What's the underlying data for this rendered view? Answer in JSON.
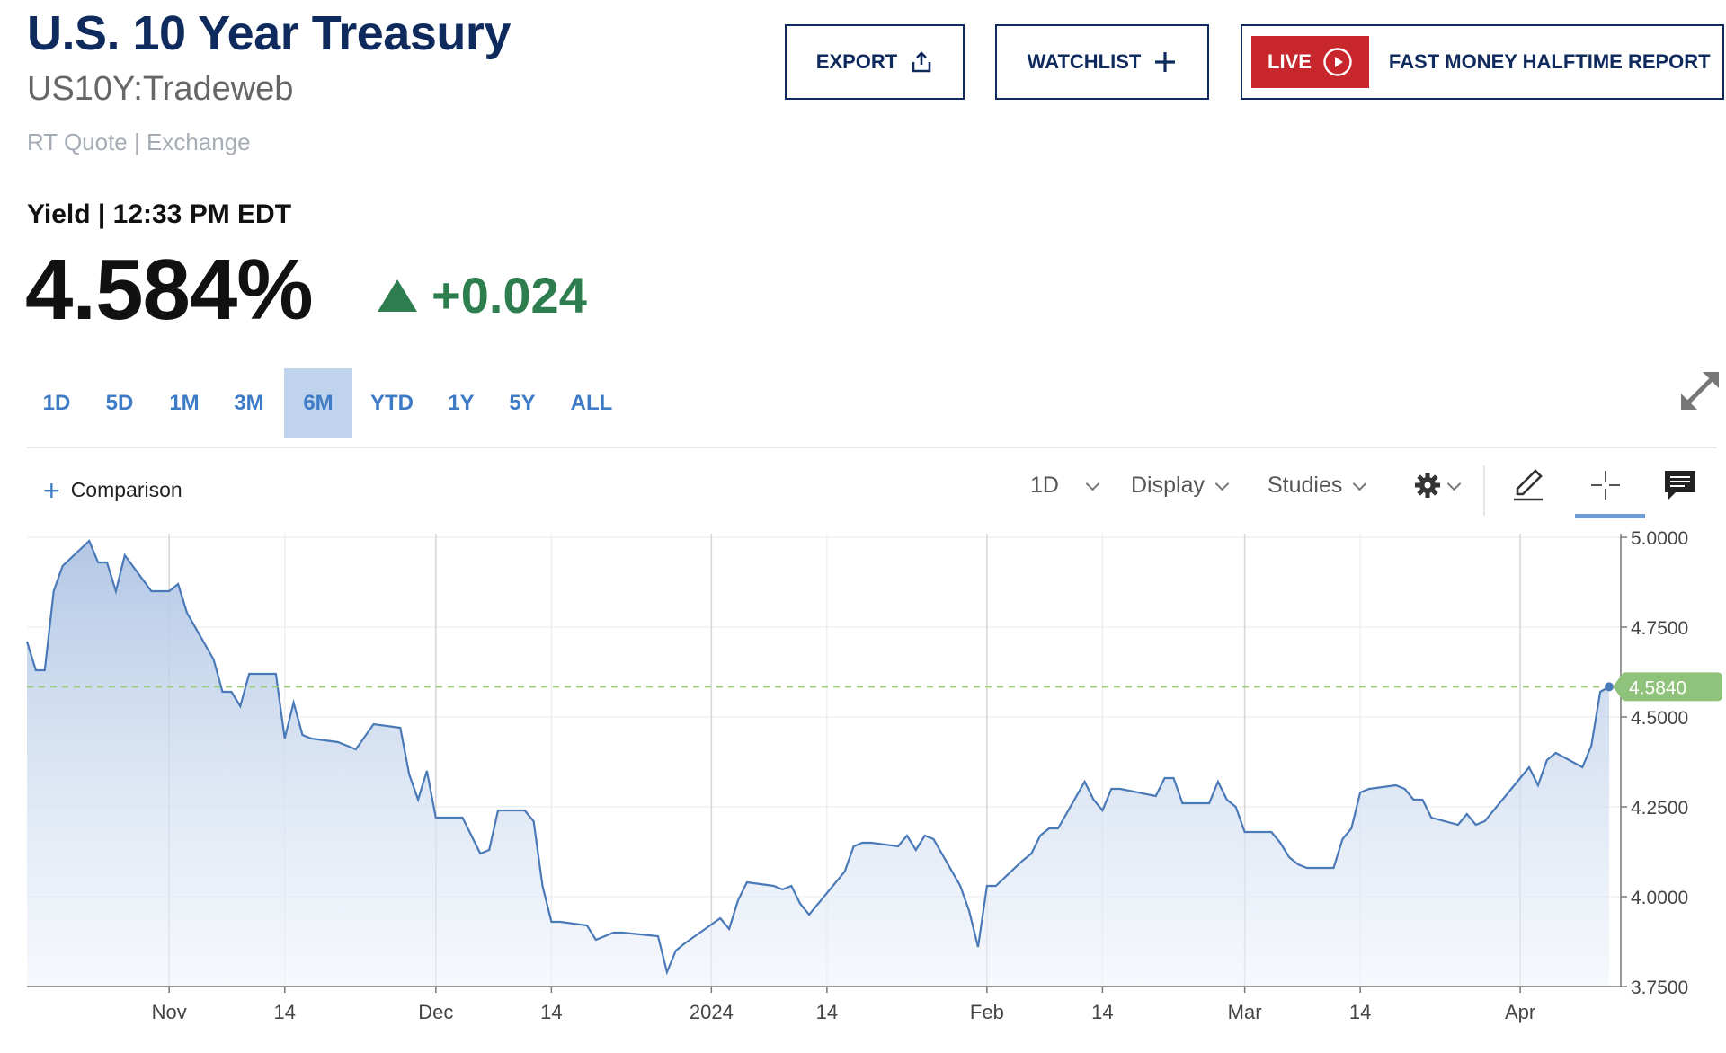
{
  "header": {
    "title": "U.S. 10 Year Treasury",
    "symbol": "US10Y:Tradeweb",
    "quote_source": "RT Quote | Exchange"
  },
  "quote": {
    "yield_label": "Yield | 12:33 PM EDT",
    "price": "4.584%",
    "change": "+0.024",
    "change_direction": "up",
    "change_color": "#2e7d4f"
  },
  "actions": {
    "export_label": "EXPORT",
    "watchlist_label": "WATCHLIST",
    "live_label": "LIVE",
    "live_show": "FAST MONEY HALFTIME REPORT",
    "live_color": "#c8262d"
  },
  "ranges": {
    "items": [
      "1D",
      "5D",
      "1M",
      "3M",
      "6M",
      "YTD",
      "1Y",
      "5Y",
      "ALL"
    ],
    "active": "6M"
  },
  "toolbar": {
    "comparison_label": "Comparison",
    "interval_label": "1D",
    "display_label": "Display",
    "studies_label": "Studies",
    "icons": [
      "gear-icon",
      "pencil-icon",
      "crosshair-icon",
      "comment-icon",
      "expand-icon"
    ]
  },
  "chart_data": {
    "type": "area",
    "title": "",
    "ylim": [
      3.75,
      5.0
    ],
    "yticks": [
      "5.0000",
      "4.7500",
      "4.5000",
      "4.2500",
      "4.0000",
      "3.7500"
    ],
    "xticks": [
      "Nov",
      "14",
      "Dec",
      "14",
      "2024",
      "14",
      "Feb",
      "14",
      "Mar",
      "14",
      "Apr"
    ],
    "last_value_label": "4.5840",
    "last_value": 4.584,
    "reference_line": 4.584,
    "grid": true,
    "line_color": "#4a79b8",
    "x_dates": [
      "2023-10-16",
      "2023-10-17",
      "2023-10-18",
      "2023-10-19",
      "2023-10-20",
      "2023-10-23",
      "2023-10-24",
      "2023-10-25",
      "2023-10-26",
      "2023-10-27",
      "2023-10-30",
      "2023-10-31",
      "2023-11-01",
      "2023-11-02",
      "2023-11-03",
      "2023-11-06",
      "2023-11-07",
      "2023-11-08",
      "2023-11-09",
      "2023-11-10",
      "2023-11-13",
      "2023-11-14",
      "2023-11-15",
      "2023-11-16",
      "2023-11-17",
      "2023-11-20",
      "2023-11-21",
      "2023-11-22",
      "2023-11-24",
      "2023-11-27",
      "2023-11-28",
      "2023-11-29",
      "2023-11-30",
      "2023-12-01",
      "2023-12-04",
      "2023-12-05",
      "2023-12-06",
      "2023-12-07",
      "2023-12-08",
      "2023-12-11",
      "2023-12-12",
      "2023-12-13",
      "2023-12-14",
      "2023-12-15",
      "2023-12-18",
      "2023-12-19",
      "2023-12-20",
      "2023-12-21",
      "2023-12-22",
      "2023-12-26",
      "2023-12-27",
      "2023-12-28",
      "2023-12-29",
      "2024-01-02",
      "2024-01-03",
      "2024-01-04",
      "2024-01-05",
      "2024-01-08",
      "2024-01-09",
      "2024-01-10",
      "2024-01-11",
      "2024-01-12",
      "2024-01-16",
      "2024-01-17",
      "2024-01-18",
      "2024-01-19",
      "2024-01-22",
      "2024-01-23",
      "2024-01-24",
      "2024-01-25",
      "2024-01-26",
      "2024-01-29",
      "2024-01-30",
      "2024-01-31",
      "2024-02-01",
      "2024-02-02",
      "2024-02-05",
      "2024-02-06",
      "2024-02-07",
      "2024-02-08",
      "2024-02-09",
      "2024-02-12",
      "2024-02-13",
      "2024-02-14",
      "2024-02-15",
      "2024-02-16",
      "2024-02-20",
      "2024-02-21",
      "2024-02-22",
      "2024-02-23",
      "2024-02-26",
      "2024-02-27",
      "2024-02-28",
      "2024-02-29",
      "2024-03-01",
      "2024-03-04",
      "2024-03-05",
      "2024-03-06",
      "2024-03-07",
      "2024-03-08",
      "2024-03-11",
      "2024-03-12",
      "2024-03-13",
      "2024-03-14",
      "2024-03-15",
      "2024-03-18",
      "2024-03-19",
      "2024-03-20",
      "2024-03-21",
      "2024-03-22",
      "2024-03-25",
      "2024-03-26",
      "2024-03-27",
      "2024-03-28",
      "2024-04-01",
      "2024-04-02",
      "2024-04-03",
      "2024-04-04",
      "2024-04-05",
      "2024-04-08",
      "2024-04-09",
      "2024-04-10",
      "2024-04-11"
    ],
    "values": [
      4.71,
      4.63,
      4.63,
      4.85,
      4.92,
      4.99,
      4.93,
      4.93,
      4.85,
      4.95,
      4.85,
      4.85,
      4.85,
      4.87,
      4.79,
      4.66,
      4.57,
      4.57,
      4.53,
      4.62,
      4.62,
      4.44,
      4.54,
      4.45,
      4.44,
      4.43,
      4.42,
      4.41,
      4.48,
      4.47,
      4.34,
      4.27,
      4.35,
      4.22,
      4.22,
      4.17,
      4.12,
      4.13,
      4.24,
      4.24,
      4.21,
      4.03,
      3.93,
      3.93,
      3.92,
      3.88,
      3.89,
      3.9,
      3.9,
      3.89,
      3.79,
      3.85,
      3.87,
      3.94,
      3.91,
      3.99,
      4.04,
      4.03,
      4.02,
      4.03,
      3.98,
      3.95,
      4.07,
      4.14,
      4.15,
      4.15,
      4.14,
      4.17,
      4.13,
      4.17,
      4.16,
      4.03,
      3.96,
      3.86,
      4.03,
      4.03,
      4.1,
      4.12,
      4.17,
      4.19,
      4.19,
      4.32,
      4.27,
      4.24,
      4.3,
      4.3,
      4.28,
      4.33,
      4.33,
      4.26,
      4.26,
      4.32,
      4.27,
      4.25,
      4.18,
      4.18,
      4.15,
      4.11,
      4.09,
      4.08,
      4.08,
      4.16,
      4.19,
      4.29,
      4.3,
      4.31,
      4.3,
      4.27,
      4.27,
      4.22,
      4.2,
      4.23,
      4.2,
      4.21,
      4.33,
      4.36,
      4.31,
      4.38,
      4.4,
      4.36,
      4.42,
      4.57,
      4.584
    ]
  }
}
